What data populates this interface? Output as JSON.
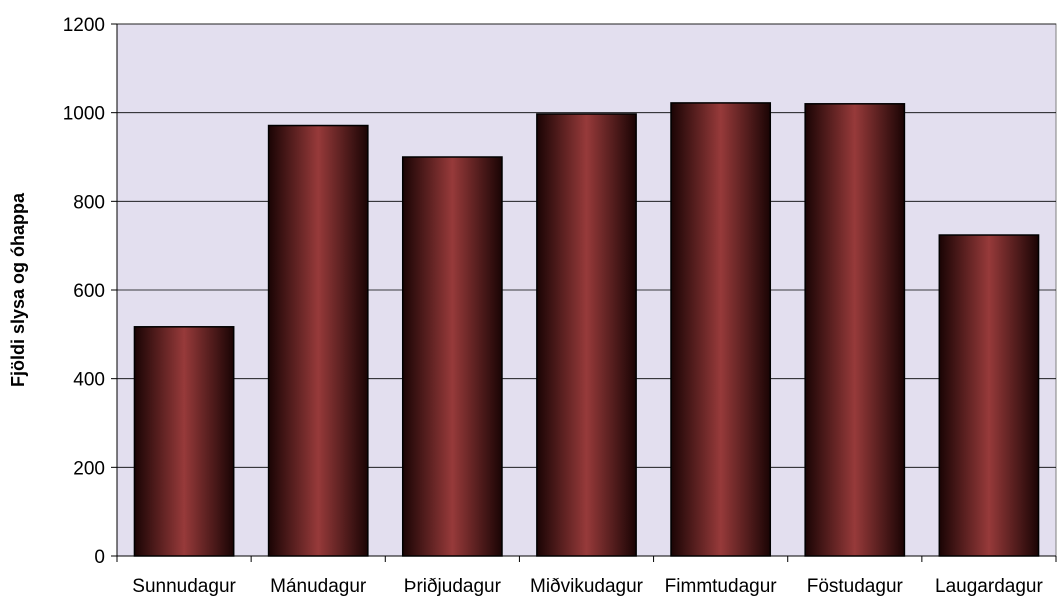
{
  "chart_data": {
    "type": "bar",
    "title": "",
    "xlabel": "",
    "ylabel": "Fjöldi slysa og óhappa",
    "categories": [
      "Sunnudagur",
      "Mánudagur",
      "Þriðjudagur",
      "Miðvikudagur",
      "Fimmtudagur",
      "Föstudagur",
      "Laugardagur"
    ],
    "values": [
      517,
      971,
      900,
      997,
      1022,
      1020,
      724
    ],
    "ylim": [
      0,
      1200
    ],
    "yticks": [
      0,
      200,
      400,
      600,
      800,
      1000,
      1200
    ],
    "grid": true,
    "colors": {
      "plot_background": "#e3dfef",
      "bar_center": "#973a3a",
      "bar_edge": "#1a0404",
      "bar_outline": "#000000",
      "gridline": "#000000"
    }
  }
}
